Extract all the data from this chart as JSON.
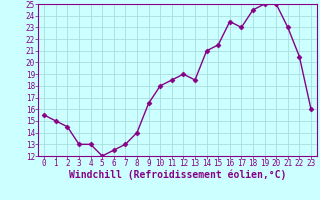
{
  "x": [
    0,
    1,
    2,
    3,
    4,
    5,
    6,
    7,
    8,
    9,
    10,
    11,
    12,
    13,
    14,
    15,
    16,
    17,
    18,
    19,
    20,
    21,
    22,
    23
  ],
  "y": [
    15.5,
    15.0,
    14.5,
    13.0,
    13.0,
    12.0,
    12.5,
    13.0,
    14.0,
    16.5,
    18.0,
    18.5,
    19.0,
    18.5,
    21.0,
    21.5,
    23.5,
    23.0,
    24.5,
    25.0,
    25.0,
    23.0,
    20.5,
    16.0
  ],
  "line_color": "#880088",
  "marker": "D",
  "markersize": 2.5,
  "linewidth": 1.0,
  "background_color": "#ccffff",
  "grid_color": "#aadddd",
  "xlabel": "Windchill (Refroidissement éolien,°C)",
  "ylabel": "",
  "xlim": [
    -0.5,
    23.5
  ],
  "ylim": [
    12,
    25
  ],
  "xticks": [
    0,
    1,
    2,
    3,
    4,
    5,
    6,
    7,
    8,
    9,
    10,
    11,
    12,
    13,
    14,
    15,
    16,
    17,
    18,
    19,
    20,
    21,
    22,
    23
  ],
  "yticks": [
    12,
    13,
    14,
    15,
    16,
    17,
    18,
    19,
    20,
    21,
    22,
    23,
    24,
    25
  ],
  "tick_fontsize": 5.5,
  "xlabel_fontsize": 7.0,
  "tick_color": "#880088",
  "xlabel_color": "#880088",
  "spine_color": "#880088"
}
